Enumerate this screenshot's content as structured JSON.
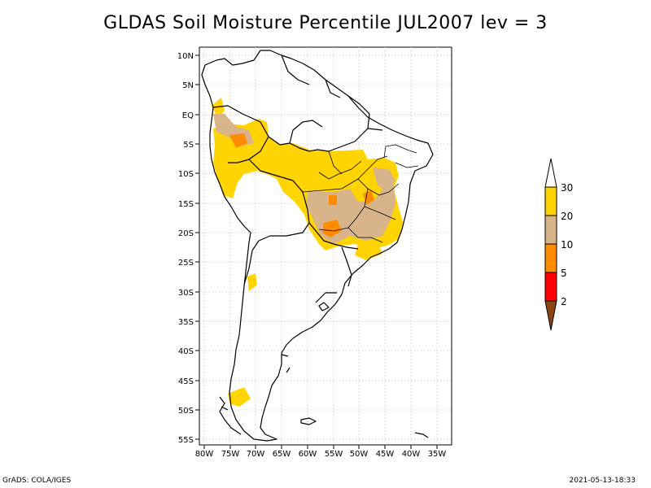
{
  "title": "GLDAS Soil Moisture Percentile JUL2007 lev = 3",
  "footer": {
    "left": "GrADS: COLA/IGES",
    "right": "2021-05-13-18:33"
  },
  "map": {
    "lat_labels": [
      "10N",
      "5N",
      "EQ",
      "5S",
      "10S",
      "15S",
      "20S",
      "25S",
      "30S",
      "35S",
      "40S",
      "45S",
      "50S",
      "55S"
    ],
    "lon_labels": [
      "80W",
      "75W",
      "70W",
      "65W",
      "60W",
      "55W",
      "50W",
      "45W",
      "40W",
      "35W"
    ],
    "lon_range": [
      -80.5,
      -32
    ],
    "lat_range": [
      -56,
      12
    ]
  },
  "legend": {
    "labels": [
      "30",
      "20",
      "10",
      "5",
      "2"
    ],
    "colors": {
      "above30": "#ffffff",
      "20_30": "#ffd400",
      "10_20": "#d8b48a",
      "5_10": "#ff8c00",
      "2_5": "#ff0000",
      "below2": "#8b4513"
    }
  }
}
